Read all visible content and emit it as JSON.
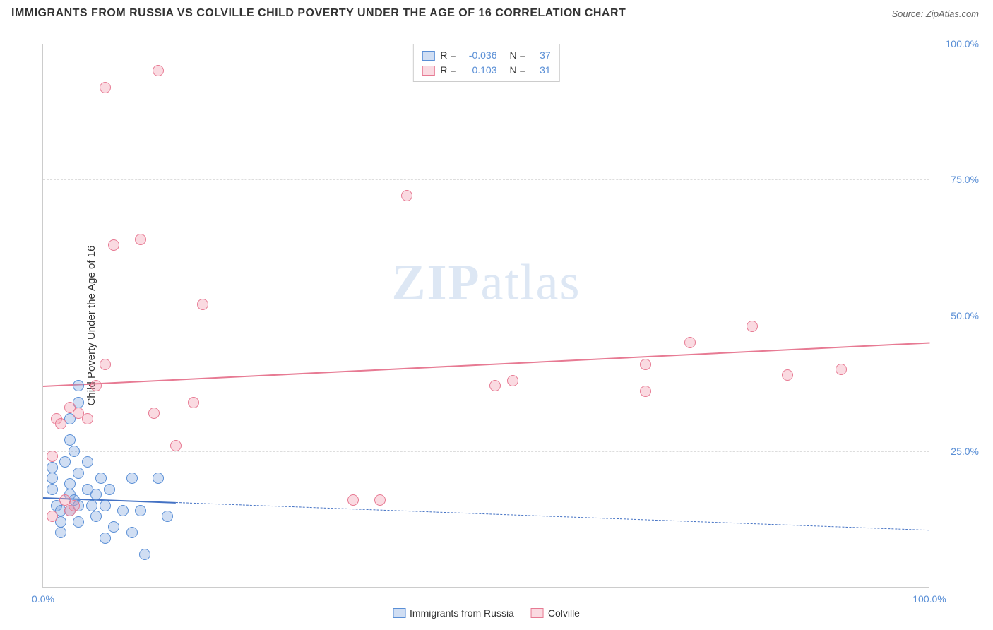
{
  "header": {
    "title": "IMMIGRANTS FROM RUSSIA VS COLVILLE CHILD POVERTY UNDER THE AGE OF 16 CORRELATION CHART",
    "source": "Source: ZipAtlas.com"
  },
  "chart": {
    "type": "scatter",
    "y_axis_title": "Child Poverty Under the Age of 16",
    "xlim": [
      0,
      100
    ],
    "ylim": [
      0,
      100
    ],
    "x_ticks": [
      0,
      100
    ],
    "x_tick_labels": [
      "0.0%",
      "100.0%"
    ],
    "y_ticks": [
      25,
      50,
      75,
      100
    ],
    "y_tick_labels": [
      "25.0%",
      "50.0%",
      "75.0%",
      "100.0%"
    ],
    "background_color": "#ffffff",
    "grid_color": "#dddddd",
    "axis_color": "#cccccc",
    "tick_label_color": "#5a8fd6",
    "point_radius": 8,
    "series": [
      {
        "name": "Immigrants from Russia",
        "fill_color": "rgba(120,160,220,0.35)",
        "stroke_color": "#5a8fd6",
        "r_value": "-0.036",
        "n_value": "37",
        "trend": {
          "y_start": 16.5,
          "y_end": 10.5,
          "solid_until_x": 15,
          "solid_width": 2.5,
          "dash_width": 1.2,
          "color": "#4472c4"
        },
        "points": [
          [
            1,
            22
          ],
          [
            1,
            20
          ],
          [
            1,
            18
          ],
          [
            1.5,
            15
          ],
          [
            2,
            14
          ],
          [
            2,
            12
          ],
          [
            2,
            10
          ],
          [
            2.5,
            23
          ],
          [
            3,
            27
          ],
          [
            3,
            19
          ],
          [
            3,
            17
          ],
          [
            3,
            14
          ],
          [
            3.5,
            25
          ],
          [
            3.5,
            16
          ],
          [
            4,
            34
          ],
          [
            4,
            37
          ],
          [
            4,
            21
          ],
          [
            4,
            15
          ],
          [
            4,
            12
          ],
          [
            5,
            23
          ],
          [
            5,
            18
          ],
          [
            5.5,
            15
          ],
          [
            6,
            17
          ],
          [
            6,
            13
          ],
          [
            6.5,
            20
          ],
          [
            7,
            9
          ],
          [
            7,
            15
          ],
          [
            7.5,
            18
          ],
          [
            8,
            11
          ],
          [
            9,
            14
          ],
          [
            10,
            20
          ],
          [
            10,
            10
          ],
          [
            11,
            14
          ],
          [
            11.5,
            6
          ],
          [
            13,
            20
          ],
          [
            14,
            13
          ],
          [
            3,
            31
          ]
        ]
      },
      {
        "name": "Colville",
        "fill_color": "rgba(240,150,170,0.35)",
        "stroke_color": "#e77a93",
        "r_value": "0.103",
        "n_value": "31",
        "trend": {
          "y_start": 37,
          "y_end": 45,
          "solid_until_x": 100,
          "solid_width": 2.5,
          "color": "#e77a93"
        },
        "points": [
          [
            1,
            24
          ],
          [
            1,
            13
          ],
          [
            1.5,
            31
          ],
          [
            2,
            30
          ],
          [
            2.5,
            16
          ],
          [
            3,
            33
          ],
          [
            3,
            14
          ],
          [
            3.5,
            15
          ],
          [
            4,
            32
          ],
          [
            5,
            31
          ],
          [
            6,
            37
          ],
          [
            7,
            92
          ],
          [
            7,
            41
          ],
          [
            8,
            63
          ],
          [
            11,
            64
          ],
          [
            12.5,
            32
          ],
          [
            13,
            95
          ],
          [
            15,
            26
          ],
          [
            17,
            34
          ],
          [
            18,
            52
          ],
          [
            35,
            16
          ],
          [
            38,
            16
          ],
          [
            41,
            72
          ],
          [
            51,
            37
          ],
          [
            53,
            38
          ],
          [
            68,
            36
          ],
          [
            68,
            41
          ],
          [
            73,
            45
          ],
          [
            80,
            48
          ],
          [
            84,
            39
          ],
          [
            90,
            40
          ]
        ]
      }
    ],
    "legend_top": {
      "r_prefix": "R =",
      "n_prefix": "N ="
    },
    "legend_bottom": [
      {
        "label": "Immigrants from Russia",
        "fill": "rgba(120,160,220,0.35)",
        "stroke": "#5a8fd6"
      },
      {
        "label": "Colville",
        "fill": "rgba(240,150,170,0.35)",
        "stroke": "#e77a93"
      }
    ],
    "watermark": {
      "part1": "ZIP",
      "part2": "atlas"
    }
  }
}
